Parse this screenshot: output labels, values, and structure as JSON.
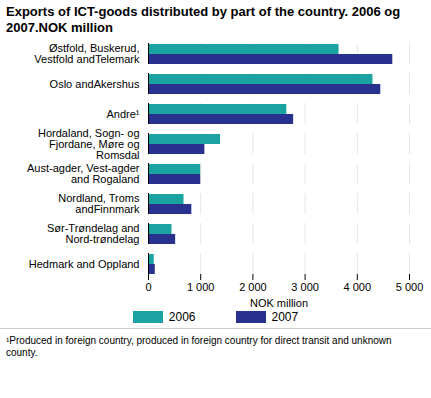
{
  "chart_data": {
    "type": "bar",
    "orientation": "horizontal",
    "title": "Exports of ICT-goods distributed by part of the country. 2006 og 2007.NOK million",
    "categories": [
      "Østfold, Buskerud, Vestfold andTelemark",
      "Oslo andAkershus",
      "Andre¹",
      "Hordaland, Sogn- og Fjordane, Møre og Romsdal",
      "Aust-agder, Vest-agder and Rogaland",
      "Nordland, Troms andFinnmark",
      "Sør-Trøndelag and Nord-trøndelag",
      "Hedmark and Oppland"
    ],
    "series": [
      {
        "name": "2006",
        "color": "#1ba3a1",
        "values": [
          3650,
          4300,
          2650,
          1380,
          1000,
          680,
          450,
          110
        ]
      },
      {
        "name": "2007",
        "color": "#28318e",
        "values": [
          4680,
          4450,
          2780,
          1080,
          1000,
          830,
          520,
          130
        ]
      }
    ],
    "x_label": "NOK million",
    "xlim": [
      0,
      5000
    ],
    "xticks": [
      0,
      {
        "value": 1000,
        "label": "1 000"
      },
      {
        "value": 2000,
        "label": "2 000"
      },
      {
        "value": 3000,
        "label": "3 000"
      },
      {
        "value": 4000,
        "label": "4 000"
      },
      {
        "value": 5000,
        "label": "5 000"
      }
    ],
    "grid": true,
    "legend": "bottom",
    "footnote": "¹Produced in foreign country, produced in foreign country for direct transit and unknown county."
  }
}
